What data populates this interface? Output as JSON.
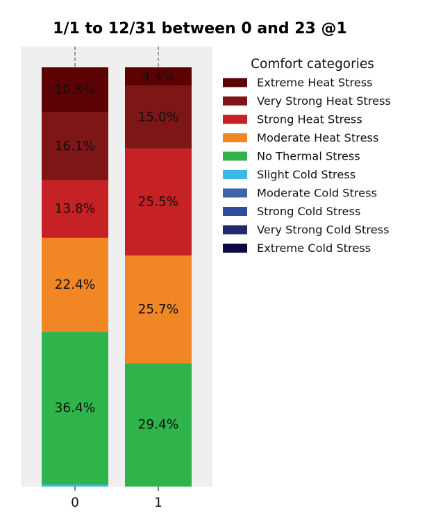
{
  "chart_data": {
    "type": "bar",
    "stacked": true,
    "title": "1/1 to 12/31 between 0 and 23 @1",
    "categories": [
      "0",
      "1"
    ],
    "ylim": [
      0,
      100
    ],
    "yaxis_visible": false,
    "xlabel": "",
    "ylabel": "",
    "legend": {
      "title": "Comfort categories",
      "placement": "right"
    },
    "series": [
      {
        "name": "Extreme Heat Stress",
        "color": "#5c0104",
        "values": [
          10.8,
          4.4
        ],
        "labels": [
          "10.8%",
          "4.4%"
        ]
      },
      {
        "name": "Very Strong Heat Stress",
        "color": "#7e1517",
        "values": [
          16.1,
          15.0
        ],
        "labels": [
          "16.1%",
          "15.0%"
        ]
      },
      {
        "name": "Strong Heat Stress",
        "color": "#c62125",
        "values": [
          13.8,
          25.5
        ],
        "labels": [
          "13.8%",
          "25.5%"
        ]
      },
      {
        "name": "Moderate Heat Stress",
        "color": "#f18625",
        "values": [
          22.4,
          25.7
        ],
        "labels": [
          "22.4%",
          "25.7%"
        ]
      },
      {
        "name": "No Thermal Stress",
        "color": "#2fb34a",
        "values": [
          36.4,
          29.4
        ],
        "labels": [
          "36.4%",
          "29.4%"
        ]
      },
      {
        "name": "Slight Cold Stress",
        "color": "#3ab9e8",
        "values": [
          0.5,
          0.0
        ],
        "labels": [
          "",
          ""
        ]
      },
      {
        "name": "Moderate Cold Stress",
        "color": "#3d64ad",
        "values": [
          0,
          0
        ],
        "labels": [
          "",
          ""
        ]
      },
      {
        "name": "Strong Cold Stress",
        "color": "#2f4c9f",
        "values": [
          0,
          0
        ],
        "labels": [
          "",
          ""
        ]
      },
      {
        "name": "Very Strong Cold Stress",
        "color": "#24286c",
        "values": [
          0,
          0
        ],
        "labels": [
          "",
          ""
        ]
      },
      {
        "name": "Extreme Cold Stress",
        "color": "#0b0a44",
        "values": [
          0,
          0
        ],
        "labels": [
          "",
          ""
        ]
      }
    ]
  }
}
